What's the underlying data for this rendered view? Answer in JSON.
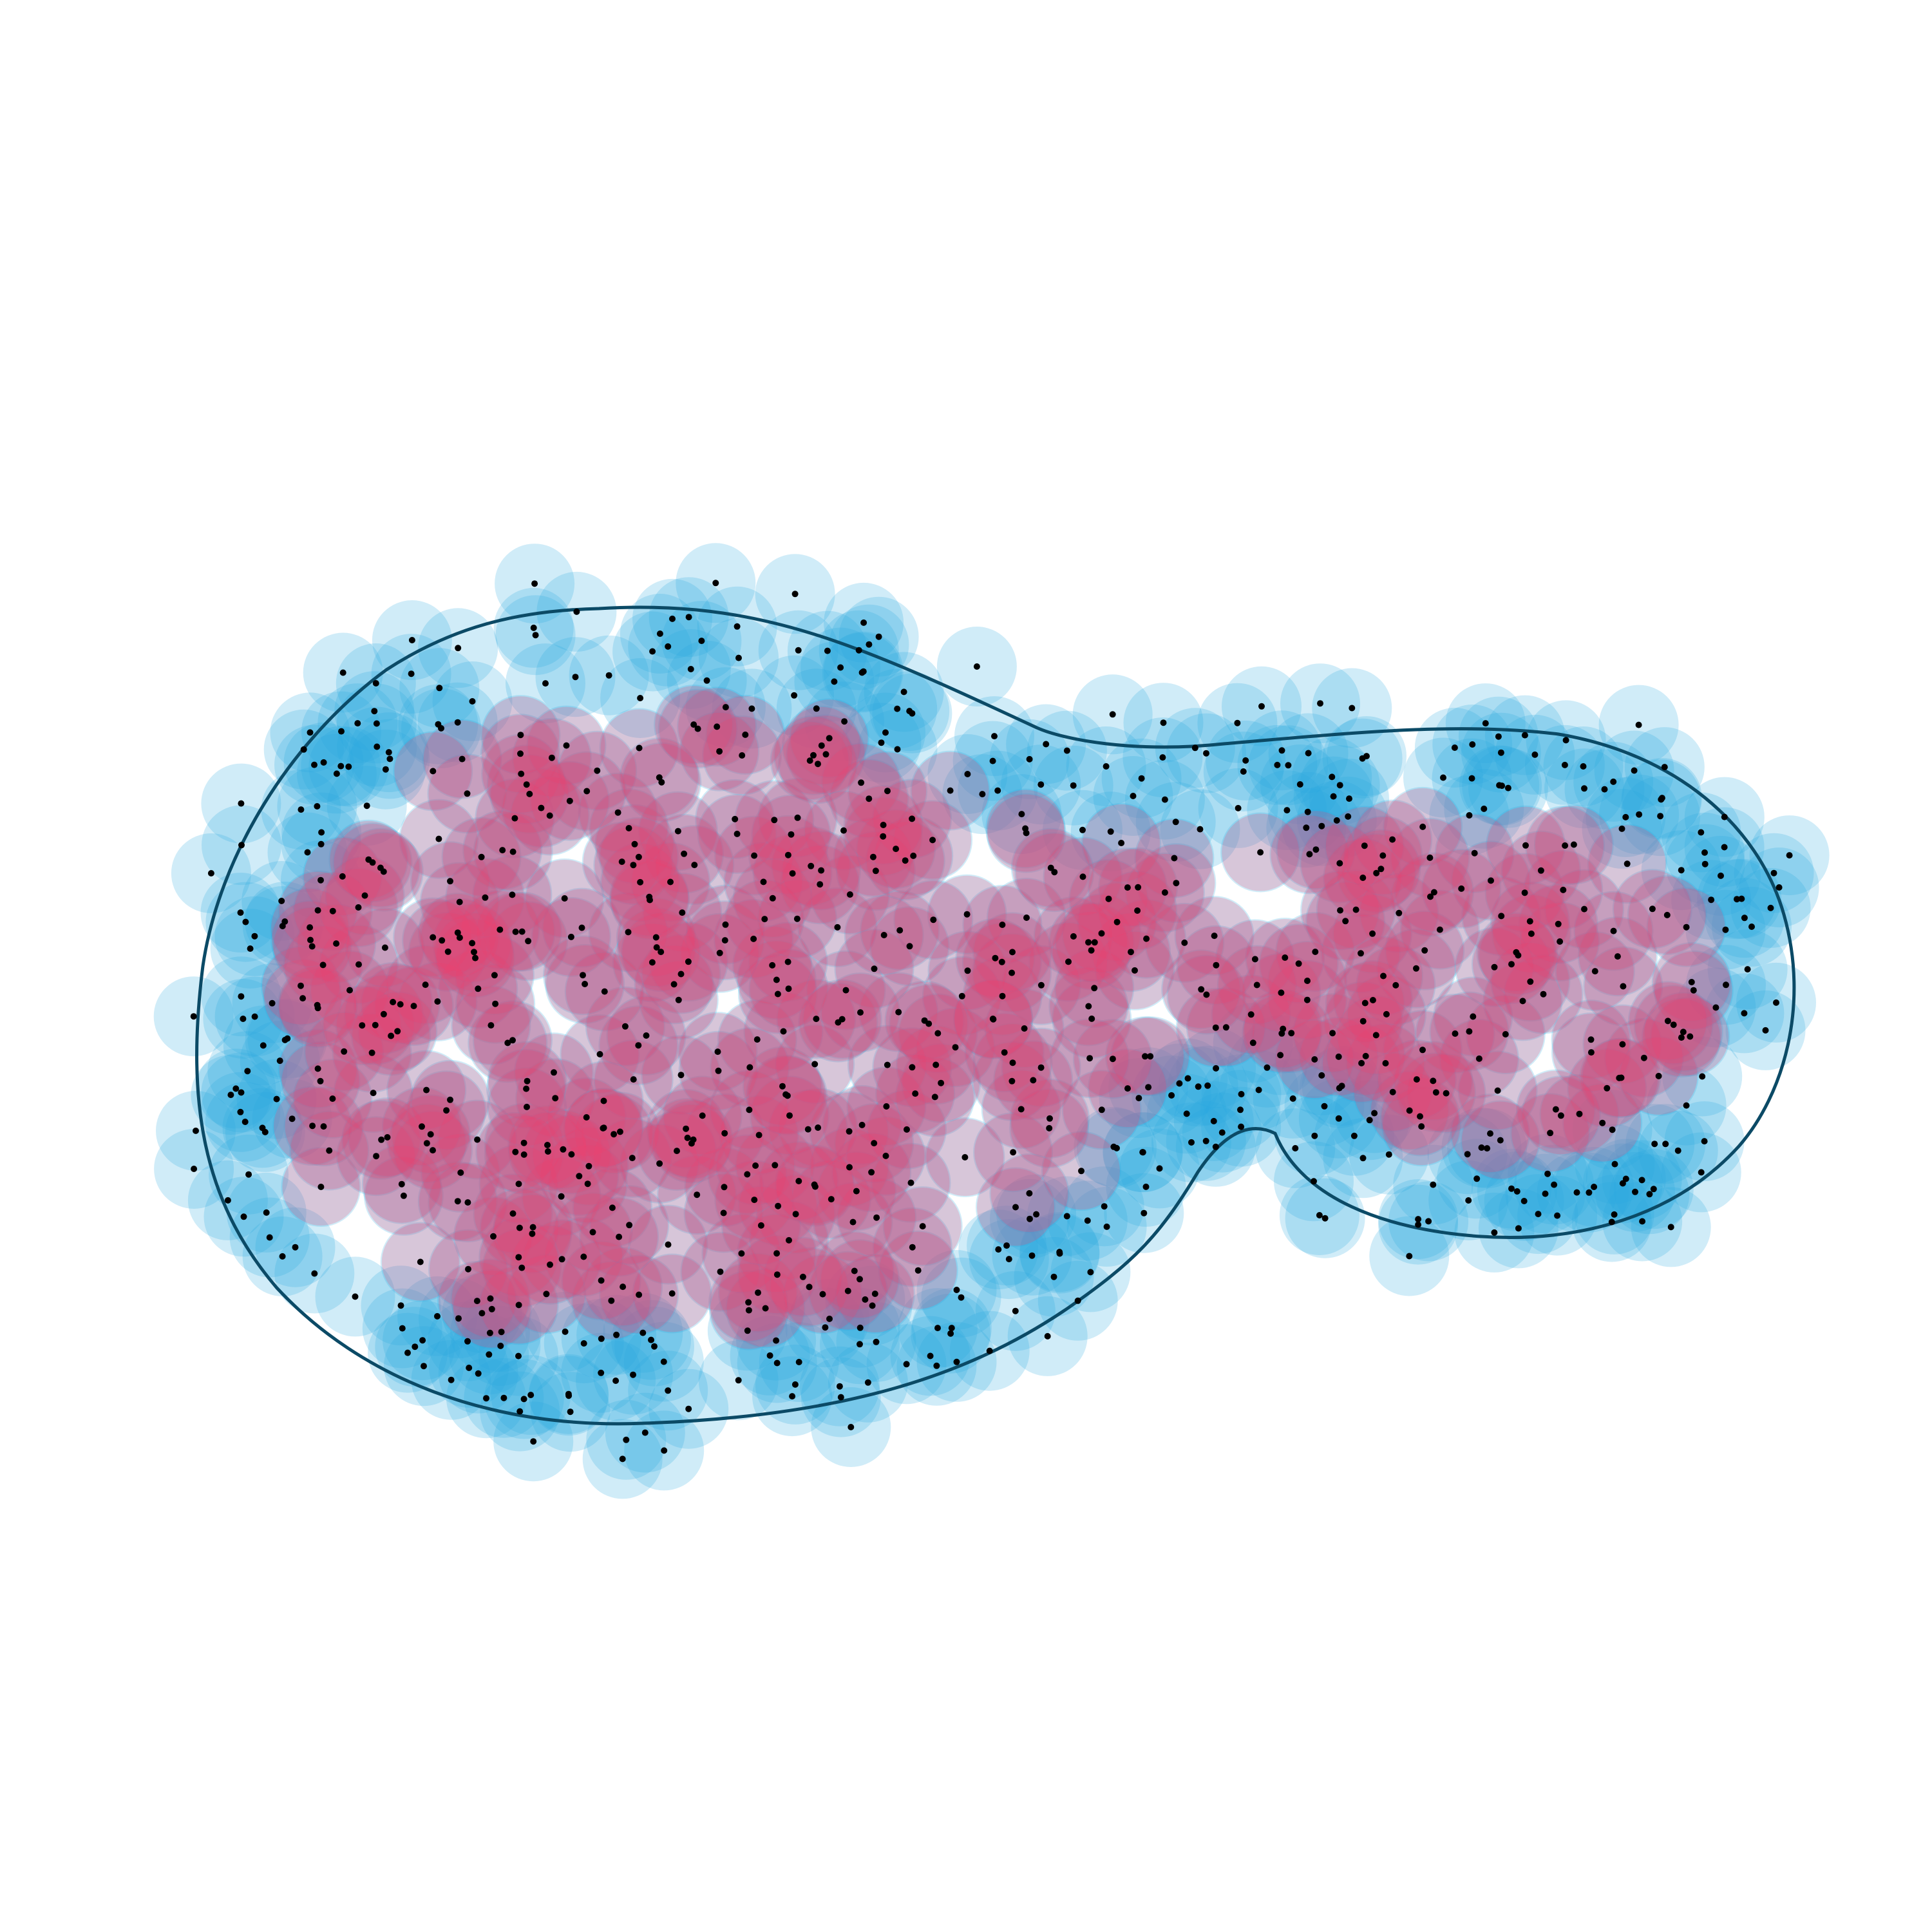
{
  "figure": {
    "description_visible_text": "",
    "colors": {
      "background": "#ffffff",
      "outer_disk": "#2aa8e0",
      "inner_disk": "#f0406e",
      "boundary": "#0b4a66",
      "point": "#000000"
    },
    "disk_opacity": {
      "outer": 0.22,
      "inner": 0.22
    },
    "point_count_approx": 900,
    "random_seed": 7
  }
}
